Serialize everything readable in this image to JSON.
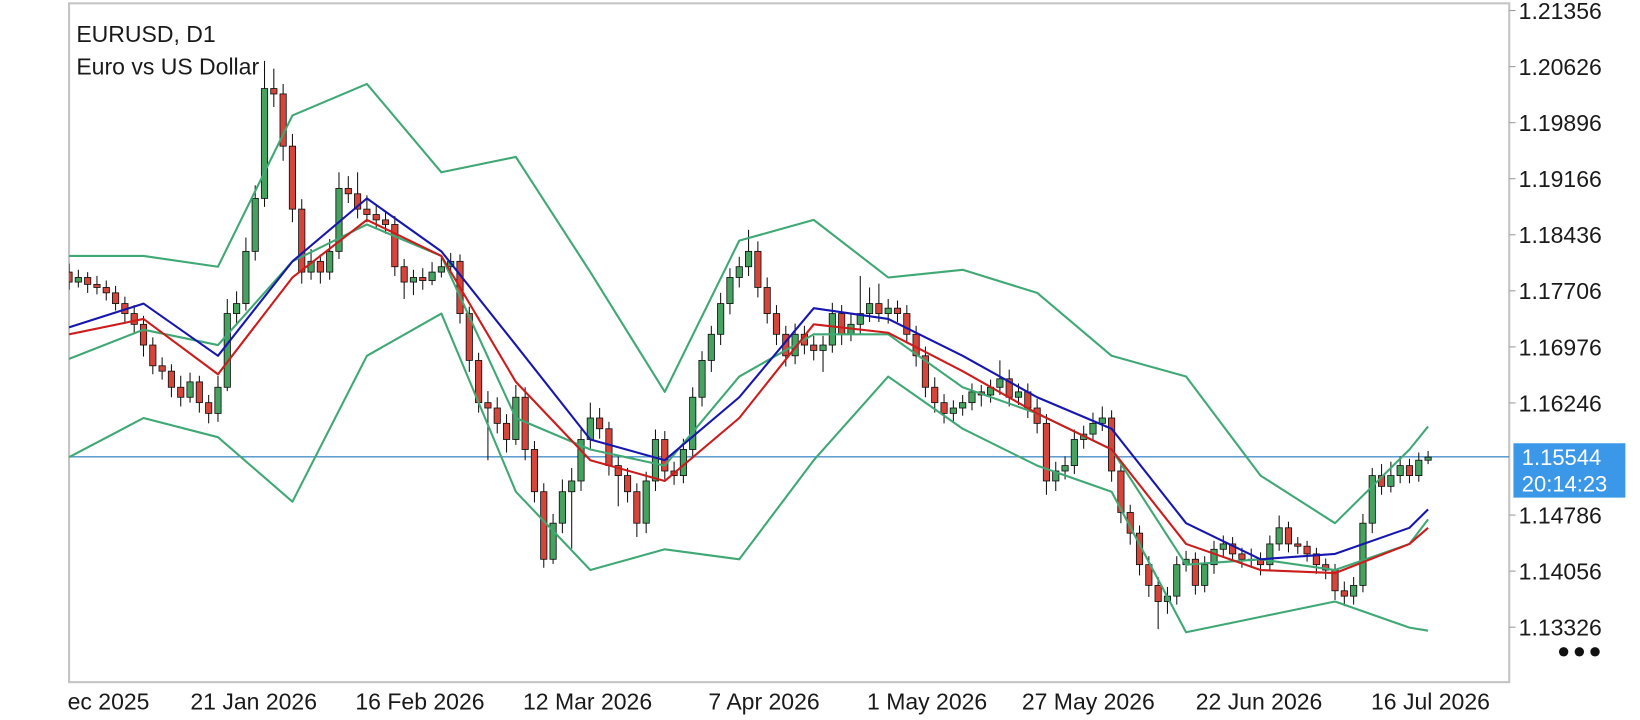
{
  "chart_data": {
    "type": "candlestick",
    "title": "EURUSD, D1",
    "subtitle": "Euro vs US Dollar",
    "bull_color": "#45a35f",
    "bear_color": "#d6453a",
    "ylim": [
      1.1261,
      1.2145
    ],
    "yticks": [
      1.21356,
      1.20626,
      1.19896,
      1.19166,
      1.18436,
      1.17706,
      1.16976,
      1.16246,
      1.14786,
      1.14056,
      1.13326
    ],
    "current_price": 1.15544,
    "countdown": "20:14:23",
    "categories": [
      null,
      "ec 2025",
      null,
      null,
      null,
      null,
      null,
      null,
      null,
      null,
      null,
      null,
      null,
      null,
      null,
      null,
      null,
      null,
      null,
      "21 Jan 2026",
      null,
      null,
      null,
      null,
      null,
      null,
      null,
      null,
      null,
      null,
      null,
      null,
      null,
      null,
      null,
      null,
      null,
      "16 Feb 2026",
      null,
      null,
      null,
      null,
      null,
      null,
      null,
      null,
      null,
      null,
      null,
      null,
      null,
      null,
      null,
      null,
      null,
      "12 Mar 2026",
      null,
      null,
      null,
      null,
      null,
      null,
      null,
      null,
      null,
      null,
      null,
      null,
      null,
      null,
      null,
      null,
      null,
      "7 Apr 2026",
      null,
      null,
      null,
      null,
      null,
      null,
      null,
      null,
      null,
      null,
      null,
      null,
      null,
      null,
      null,
      null,
      null,
      "1 May 2026",
      null,
      null,
      null,
      null,
      null,
      null,
      null,
      null,
      null,
      null,
      null,
      null,
      null,
      null,
      null,
      null,
      null,
      "27 May 2026",
      null,
      null,
      null,
      null,
      null,
      null,
      null,
      null,
      null,
      null,
      null,
      null,
      null,
      null,
      null,
      null,
      null,
      "22 Jun 2026",
      null,
      null,
      null,
      null,
      null,
      null,
      null,
      null,
      null,
      null,
      null,
      null,
      null,
      null,
      null,
      null,
      null,
      "16 Jul 2026",
      null
    ],
    "ohlc": [
      [
        1.1795,
        1.1806,
        1.1772,
        1.1782
      ],
      [
        1.1782,
        1.1798,
        1.1775,
        1.1788
      ],
      [
        1.1788,
        1.1795,
        1.1768,
        1.1779
      ],
      [
        1.1779,
        1.179,
        1.1766,
        1.1775
      ],
      [
        1.1775,
        1.1784,
        1.1758,
        1.1768
      ],
      [
        1.1768,
        1.1777,
        1.1745,
        1.1754
      ],
      [
        1.1754,
        1.1763,
        1.173,
        1.1741
      ],
      [
        1.1741,
        1.1752,
        1.1715,
        1.1727
      ],
      [
        1.1727,
        1.1738,
        1.1685,
        1.17
      ],
      [
        1.17,
        1.171,
        1.1662,
        1.1673
      ],
      [
        1.1673,
        1.1684,
        1.1655,
        1.1666
      ],
      [
        1.1666,
        1.1675,
        1.1632,
        1.1645
      ],
      [
        1.1645,
        1.166,
        1.162,
        1.1632
      ],
      [
        1.1632,
        1.1664,
        1.1625,
        1.1652
      ],
      [
        1.1652,
        1.166,
        1.1612,
        1.1625
      ],
      [
        1.1625,
        1.1635,
        1.1598,
        1.1611
      ],
      [
        1.1611,
        1.166,
        1.16,
        1.1645
      ],
      [
        1.1645,
        1.176,
        1.164,
        1.1741
      ],
      [
        1.1741,
        1.177,
        1.1728,
        1.1754
      ],
      [
        1.1754,
        1.184,
        1.1745,
        1.1822
      ],
      [
        1.1822,
        1.1908,
        1.181,
        1.1891
      ],
      [
        1.1891,
        1.207,
        1.188,
        1.2034
      ],
      [
        1.2034,
        1.206,
        1.201,
        1.2027
      ],
      [
        1.2027,
        1.204,
        1.194,
        1.1959
      ],
      [
        1.1959,
        1.1975,
        1.186,
        1.1877
      ],
      [
        1.1877,
        1.189,
        1.178,
        1.1795
      ],
      [
        1.1795,
        1.1825,
        1.1785,
        1.1809
      ],
      [
        1.1809,
        1.1818,
        1.178,
        1.1795
      ],
      [
        1.1795,
        1.1838,
        1.1785,
        1.1822
      ],
      [
        1.1822,
        1.1925,
        1.1812,
        1.1904
      ],
      [
        1.1904,
        1.192,
        1.1885,
        1.1897
      ],
      [
        1.1897,
        1.1925,
        1.1865,
        1.1877
      ],
      [
        1.1877,
        1.1895,
        1.186,
        1.187
      ],
      [
        1.187,
        1.1882,
        1.1852,
        1.1863
      ],
      [
        1.1863,
        1.1875,
        1.1845,
        1.1857
      ],
      [
        1.1857,
        1.1868,
        1.179,
        1.1802
      ],
      [
        1.1802,
        1.1812,
        1.176,
        1.1782
      ],
      [
        1.1782,
        1.1798,
        1.1765,
        1.1788
      ],
      [
        1.1788,
        1.18,
        1.1772,
        1.1784
      ],
      [
        1.1784,
        1.1808,
        1.1778,
        1.1795
      ],
      [
        1.1795,
        1.1815,
        1.1788,
        1.1802
      ],
      [
        1.1802,
        1.182,
        1.1795,
        1.1809
      ],
      [
        1.1809,
        1.1818,
        1.1728,
        1.1741
      ],
      [
        1.1741,
        1.175,
        1.1665,
        1.168
      ],
      [
        1.168,
        1.169,
        1.1612,
        1.1625
      ],
      [
        1.1625,
        1.164,
        1.155,
        1.1618
      ],
      [
        1.1618,
        1.1632,
        1.1585,
        1.1598
      ],
      [
        1.1598,
        1.161,
        1.156,
        1.1577
      ],
      [
        1.1577,
        1.1648,
        1.157,
        1.1632
      ],
      [
        1.1632,
        1.1645,
        1.155,
        1.1564
      ],
      [
        1.1564,
        1.1575,
        1.1495,
        1.1509
      ],
      [
        1.1509,
        1.152,
        1.141,
        1.1421
      ],
      [
        1.1421,
        1.148,
        1.1415,
        1.1468
      ],
      [
        1.1468,
        1.1525,
        1.1455,
        1.1509
      ],
      [
        1.1509,
        1.154,
        1.1435,
        1.1523
      ],
      [
        1.1523,
        1.159,
        1.151,
        1.1577
      ],
      [
        1.1577,
        1.1625,
        1.1565,
        1.1605
      ],
      [
        1.1605,
        1.1618,
        1.1578,
        1.1591
      ],
      [
        1.1591,
        1.16,
        1.153,
        1.1543
      ],
      [
        1.1543,
        1.1555,
        1.149,
        1.153
      ],
      [
        1.153,
        1.154,
        1.1495,
        1.1509
      ],
      [
        1.1509,
        1.152,
        1.145,
        1.1468
      ],
      [
        1.1468,
        1.1535,
        1.1455,
        1.1523
      ],
      [
        1.1523,
        1.159,
        1.151,
        1.1577
      ],
      [
        1.1577,
        1.1588,
        1.1525,
        1.1536
      ],
      [
        1.1536,
        1.1548,
        1.1518,
        1.153
      ],
      [
        1.153,
        1.1578,
        1.152,
        1.1564
      ],
      [
        1.1564,
        1.1645,
        1.1555,
        1.1632
      ],
      [
        1.1632,
        1.1692,
        1.162,
        1.168
      ],
      [
        1.168,
        1.1725,
        1.1665,
        1.1714
      ],
      [
        1.1714,
        1.1768,
        1.17,
        1.1754
      ],
      [
        1.1754,
        1.18,
        1.174,
        1.1788
      ],
      [
        1.1788,
        1.1815,
        1.1775,
        1.1802
      ],
      [
        1.1802,
        1.185,
        1.179,
        1.1822
      ],
      [
        1.1822,
        1.1835,
        1.1762,
        1.1775
      ],
      [
        1.1775,
        1.1788,
        1.1728,
        1.1741
      ],
      [
        1.1741,
        1.1752,
        1.17,
        1.1714
      ],
      [
        1.1714,
        1.1725,
        1.1672,
        1.1686
      ],
      [
        1.1686,
        1.1728,
        1.1675,
        1.1714
      ],
      [
        1.1714,
        1.1725,
        1.1688,
        1.17
      ],
      [
        1.17,
        1.1712,
        1.168,
        1.1693
      ],
      [
        1.1693,
        1.1712,
        1.1665,
        1.17
      ],
      [
        1.17,
        1.1755,
        1.169,
        1.1741
      ],
      [
        1.1741,
        1.1752,
        1.17,
        1.1714
      ],
      [
        1.1714,
        1.174,
        1.1705,
        1.1727
      ],
      [
        1.1727,
        1.179,
        1.1715,
        1.1741
      ],
      [
        1.1741,
        1.1775,
        1.173,
        1.1754
      ],
      [
        1.1754,
        1.178,
        1.173,
        1.1741
      ],
      [
        1.1741,
        1.176,
        1.1728,
        1.1748
      ],
      [
        1.1748,
        1.1758,
        1.173,
        1.1741
      ],
      [
        1.1741,
        1.1752,
        1.1702,
        1.1714
      ],
      [
        1.1714,
        1.1725,
        1.1672,
        1.1686
      ],
      [
        1.1686,
        1.1698,
        1.1632,
        1.1645
      ],
      [
        1.1645,
        1.1658,
        1.1612,
        1.1625
      ],
      [
        1.1625,
        1.1636,
        1.1598,
        1.1611
      ],
      [
        1.1611,
        1.1628,
        1.16,
        1.1618
      ],
      [
        1.1618,
        1.1635,
        1.1608,
        1.1625
      ],
      [
        1.1625,
        1.165,
        1.1615,
        1.1639
      ],
      [
        1.1639,
        1.1648,
        1.162,
        1.1635
      ],
      [
        1.1635,
        1.1655,
        1.1625,
        1.1645
      ],
      [
        1.1645,
        1.168,
        1.1635,
        1.1656
      ],
      [
        1.1656,
        1.1668,
        1.162,
        1.1632
      ],
      [
        1.1632,
        1.165,
        1.1622,
        1.1639
      ],
      [
        1.1639,
        1.165,
        1.1605,
        1.1618
      ],
      [
        1.1618,
        1.163,
        1.1585,
        1.1598
      ],
      [
        1.1598,
        1.161,
        1.1505,
        1.1523
      ],
      [
        1.1523,
        1.1548,
        1.151,
        1.1536
      ],
      [
        1.1536,
        1.1555,
        1.1525,
        1.1543
      ],
      [
        1.1543,
        1.159,
        1.1532,
        1.1577
      ],
      [
        1.1577,
        1.1595,
        1.1565,
        1.1584
      ],
      [
        1.1584,
        1.1612,
        1.1575,
        1.1598
      ],
      [
        1.1598,
        1.162,
        1.1588,
        1.1605
      ],
      [
        1.1605,
        1.1615,
        1.1522,
        1.1536
      ],
      [
        1.1536,
        1.1545,
        1.1468,
        1.1482
      ],
      [
        1.1482,
        1.1492,
        1.144,
        1.1455
      ],
      [
        1.1455,
        1.1465,
        1.14,
        1.1414
      ],
      [
        1.1414,
        1.1425,
        1.1372,
        1.1387
      ],
      [
        1.1387,
        1.1398,
        1.133,
        1.1366
      ],
      [
        1.1366,
        1.1385,
        1.135,
        1.1373
      ],
      [
        1.1373,
        1.1425,
        1.1362,
        1.1414
      ],
      [
        1.1414,
        1.1432,
        1.1405,
        1.1421
      ],
      [
        1.1421,
        1.143,
        1.1375,
        1.1387
      ],
      [
        1.1387,
        1.1425,
        1.1378,
        1.1414
      ],
      [
        1.1414,
        1.1445,
        1.1402,
        1.1434
      ],
      [
        1.1434,
        1.1452,
        1.1425,
        1.1441
      ],
      [
        1.1441,
        1.145,
        1.1418,
        1.1428
      ],
      [
        1.1428,
        1.1436,
        1.141,
        1.1421
      ],
      [
        1.1421,
        1.1435,
        1.141,
        1.1421
      ],
      [
        1.1421,
        1.143,
        1.14,
        1.1414
      ],
      [
        1.1414,
        1.1452,
        1.1405,
        1.1441
      ],
      [
        1.1441,
        1.1478,
        1.1432,
        1.1462
      ],
      [
        1.1462,
        1.147,
        1.143,
        1.1441
      ],
      [
        1.1441,
        1.145,
        1.1428,
        1.1438
      ],
      [
        1.1438,
        1.1445,
        1.1418,
        1.1428
      ],
      [
        1.1428,
        1.1436,
        1.1402,
        1.1414
      ],
      [
        1.1414,
        1.1422,
        1.1395,
        1.1407
      ],
      [
        1.1407,
        1.1415,
        1.1368,
        1.138
      ],
      [
        1.138,
        1.1392,
        1.136,
        1.1373
      ],
      [
        1.1373,
        1.1398,
        1.1362,
        1.1387
      ],
      [
        1.1387,
        1.148,
        1.1378,
        1.1468
      ],
      [
        1.1468,
        1.154,
        1.1455,
        1.153
      ],
      [
        1.153,
        1.1545,
        1.1505,
        1.1516
      ],
      [
        1.1516,
        1.1548,
        1.1508,
        1.153
      ],
      [
        1.153,
        1.1555,
        1.152,
        1.1543
      ],
      [
        1.1543,
        1.1552,
        1.152,
        1.153
      ],
      [
        1.153,
        1.156,
        1.1522,
        1.155
      ],
      [
        1.155,
        1.1562,
        1.1545,
        1.1554
      ]
    ],
    "line_x": [
      0,
      8,
      16,
      24,
      32,
      40,
      48,
      56,
      64,
      72,
      80,
      88,
      96,
      104,
      112,
      120,
      128,
      136,
      144,
      146
    ],
    "lines": [
      {
        "color": "#3fa874",
        "values": [
          1.1816,
          1.1816,
          1.1802,
          1.1999,
          1.204,
          1.1925,
          1.1945,
          1.1795,
          1.1639,
          1.1836,
          1.1863,
          1.1788,
          1.1798,
          1.1768,
          1.1686,
          1.1659,
          1.153,
          1.1468,
          1.1564,
          1.1594
        ]
      },
      {
        "color": "#3fa874",
        "values": [
          1.1554,
          1.1605,
          1.158,
          1.1496,
          1.1686,
          1.1741,
          1.1509,
          1.1407,
          1.1434,
          1.1421,
          1.155,
          1.1659,
          1.1591,
          1.1543,
          1.1509,
          1.1326,
          1.1346,
          1.1366,
          1.1332,
          1.1328
        ]
      },
      {
        "color": "#3fa874",
        "values": [
          1.1682,
          1.172,
          1.17,
          1.1809,
          1.1857,
          1.1816,
          1.1605,
          1.1564,
          1.1543,
          1.1659,
          1.1714,
          1.1714,
          1.1645,
          1.1611,
          1.1564,
          1.1414,
          1.1421,
          1.1407,
          1.1441,
          1.1473
        ]
      },
      {
        "color": "#1616b0",
        "values": [
          1.1723,
          1.1754,
          1.1686,
          1.1809,
          1.1891,
          1.1822,
          1.17,
          1.1577,
          1.155,
          1.1632,
          1.1748,
          1.1734,
          1.1686,
          1.1632,
          1.1591,
          1.1468,
          1.1421,
          1.1428,
          1.1462,
          1.1486
        ]
      },
      {
        "color": "#cc1c1c",
        "values": [
          1.1714,
          1.1734,
          1.1662,
          1.1788,
          1.1863,
          1.1816,
          1.1652,
          1.155,
          1.1523,
          1.1605,
          1.1727,
          1.1716,
          1.1666,
          1.1611,
          1.1564,
          1.1441,
          1.1407,
          1.1403,
          1.1441,
          1.1462
        ]
      }
    ]
  }
}
